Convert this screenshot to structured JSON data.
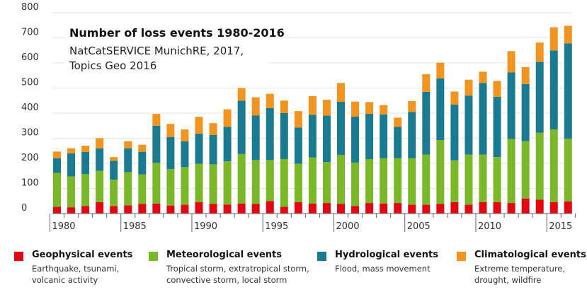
{
  "chart_data": {
    "type": "bar",
    "stacked": true,
    "title": "Number of loss events 1980-2016",
    "subtitle_line1": "NatCatSERVICE MunichRE, 2017,",
    "subtitle_line2": "Topics Geo 2016",
    "ylim": [
      0,
      800
    ],
    "yticks": [
      0,
      100,
      200,
      300,
      400,
      500,
      600,
      700,
      800
    ],
    "xtick_labels": [
      "1980",
      "1985",
      "1990",
      "1995",
      "2000",
      "2005",
      "2010",
      "2015"
    ],
    "categories": [
      1980,
      1981,
      1982,
      1983,
      1984,
      1985,
      1986,
      1987,
      1988,
      1989,
      1990,
      1991,
      1992,
      1993,
      1994,
      1995,
      1996,
      1997,
      1998,
      1999,
      2000,
      2001,
      2002,
      2003,
      2004,
      2005,
      2006,
      2007,
      2008,
      2009,
      2010,
      2011,
      2012,
      2013,
      2014,
      2015,
      2016
    ],
    "series": [
      {
        "name": "Geophysical events",
        "description": "Earthquake, tsunami, volcanic activity",
        "color": "#e30613",
        "values": [
          27,
          25,
          30,
          45,
          30,
          33,
          38,
          40,
          32,
          35,
          45,
          38,
          36,
          40,
          38,
          50,
          27,
          45,
          40,
          42,
          38,
          30,
          42,
          40,
          42,
          35,
          35,
          38,
          45,
          35,
          45,
          45,
          42,
          60,
          55,
          45,
          48
        ]
      },
      {
        "name": "Meteorological events",
        "description": "Tropical storm, extratropical storm, convective storm, local storm",
        "color": "#7ab829",
        "values": [
          135,
          123,
          127,
          125,
          105,
          132,
          118,
          162,
          145,
          150,
          153,
          158,
          172,
          197,
          175,
          163,
          190,
          153,
          183,
          163,
          195,
          173,
          175,
          180,
          178,
          185,
          200,
          255,
          167,
          200,
          190,
          180,
          255,
          228,
          267,
          290,
          250
        ]
      },
      {
        "name": "Hydrological events",
        "description": "Flood, mass movement",
        "color": "#1a7a8f",
        "values": [
          58,
          92,
          88,
          90,
          75,
          95,
          90,
          148,
          128,
          103,
          120,
          117,
          137,
          213,
          178,
          207,
          183,
          145,
          170,
          185,
          212,
          183,
          180,
          175,
          125,
          185,
          250,
          245,
          222,
          235,
          285,
          240,
          265,
          228,
          282,
          315,
          380
        ]
      },
      {
        "name": "Climatological events",
        "description": "Extreme temperature, drought, wildfire",
        "color": "#f29420",
        "values": [
          27,
          20,
          25,
          40,
          15,
          28,
          28,
          47,
          52,
          47,
          67,
          47,
          70,
          50,
          72,
          57,
          50,
          65,
          75,
          63,
          75,
          60,
          47,
          37,
          37,
          43,
          70,
          63,
          52,
          63,
          45,
          63,
          85,
          67,
          77,
          92,
          70
        ]
      }
    ]
  }
}
